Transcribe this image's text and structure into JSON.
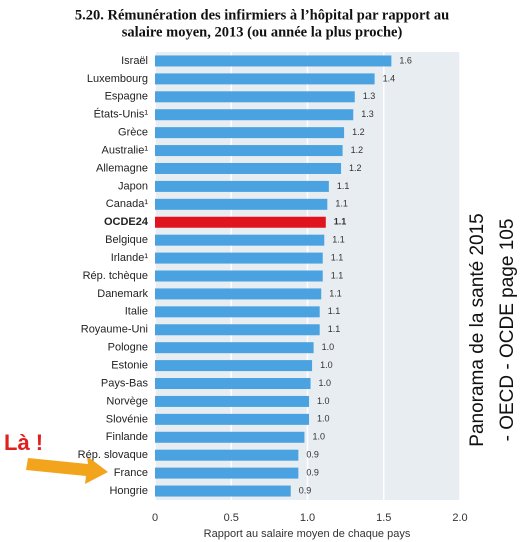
{
  "chart_data": {
    "type": "bar",
    "orientation": "horizontal",
    "title_lines": [
      "5.20. Rémunération des infirmiers à l’hôpital par rapport au",
      "salaire moyen, 2013 (ou année la plus proche)"
    ],
    "categories": [
      "Israël",
      "Luxembourg",
      "Espagne",
      "États-Unis¹",
      "Grèce",
      "Australie¹",
      "Allemagne",
      "Japon",
      "Canada¹",
      "OCDE24",
      "Belgique",
      "Irlande¹",
      "Rép. tchèque",
      "Danemark",
      "Italie",
      "Royaume-Uni",
      "Pologne",
      "Estonie",
      "Pays-Bas",
      "Norvège",
      "Slovénie",
      "Finlande",
      "Rép. slovaque",
      "France",
      "Hongrie"
    ],
    "values": [
      1.55,
      1.44,
      1.31,
      1.3,
      1.24,
      1.23,
      1.22,
      1.14,
      1.13,
      1.12,
      1.11,
      1.1,
      1.1,
      1.09,
      1.08,
      1.08,
      1.04,
      1.03,
      1.02,
      1.01,
      1.01,
      0.98,
      0.94,
      0.94,
      0.89
    ],
    "value_labels": [
      "1.6",
      "1.4",
      "1.3",
      "1.3",
      "1.2",
      "1.2",
      "1.2",
      "1.1",
      "1.1",
      "1.1",
      "1.1",
      "1.1",
      "1.1",
      "1.1",
      "1.1",
      "1.1",
      "1.0",
      "1.0",
      "1.0",
      "1.0",
      "1.0",
      "1.0",
      "0.9",
      "0.9",
      "0.9"
    ],
    "colors": [
      "#4aa3e0",
      "#4aa3e0",
      "#4aa3e0",
      "#4aa3e0",
      "#4aa3e0",
      "#4aa3e0",
      "#4aa3e0",
      "#4aa3e0",
      "#4aa3e0",
      "#e0141e",
      "#4aa3e0",
      "#4aa3e0",
      "#4aa3e0",
      "#4aa3e0",
      "#4aa3e0",
      "#4aa3e0",
      "#4aa3e0",
      "#4aa3e0",
      "#4aa3e0",
      "#4aa3e0",
      "#4aa3e0",
      "#4aa3e0",
      "#4aa3e0",
      "#4aa3e0",
      "#4aa3e0"
    ],
    "xlim": [
      0,
      2
    ],
    "xticks": [
      0,
      0.5,
      {
        "value": 1,
        "label": "1.0"
      },
      1.5,
      {
        "value": 2,
        "label": "2.0"
      }
    ],
    "xlabel": "Rapport au salaire moyen de chaque pays",
    "grid": true,
    "annotations": [
      "Panorama de la santé 2015",
      "- OECD - OCDE page 105",
      "Là !"
    ]
  }
}
